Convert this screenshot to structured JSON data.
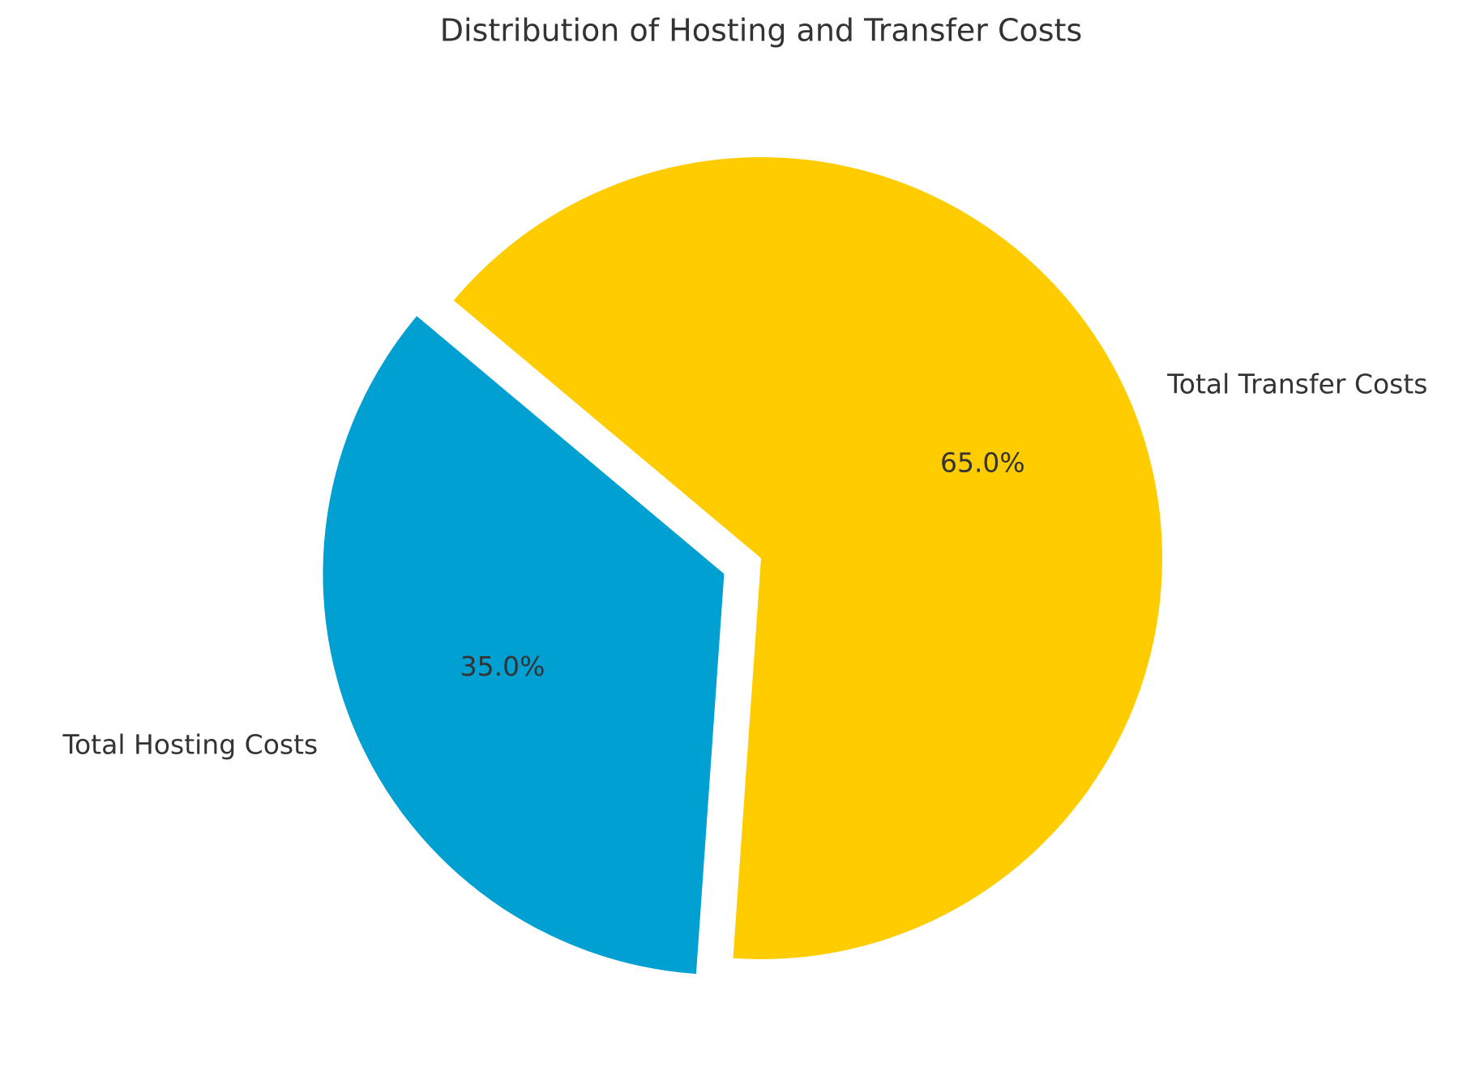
{
  "chart_data": {
    "type": "pie",
    "title": "Distribution of Hosting and Transfer Costs",
    "categories": [
      "Total Hosting Costs",
      "Total Transfer Costs"
    ],
    "values": [
      35,
      65
    ],
    "value_labels": [
      "35.0%",
      "65.0%"
    ],
    "colors": [
      "#00a0d2",
      "#ffcc00"
    ],
    "explode": [
      0.1,
      0
    ],
    "startangle": 140
  }
}
